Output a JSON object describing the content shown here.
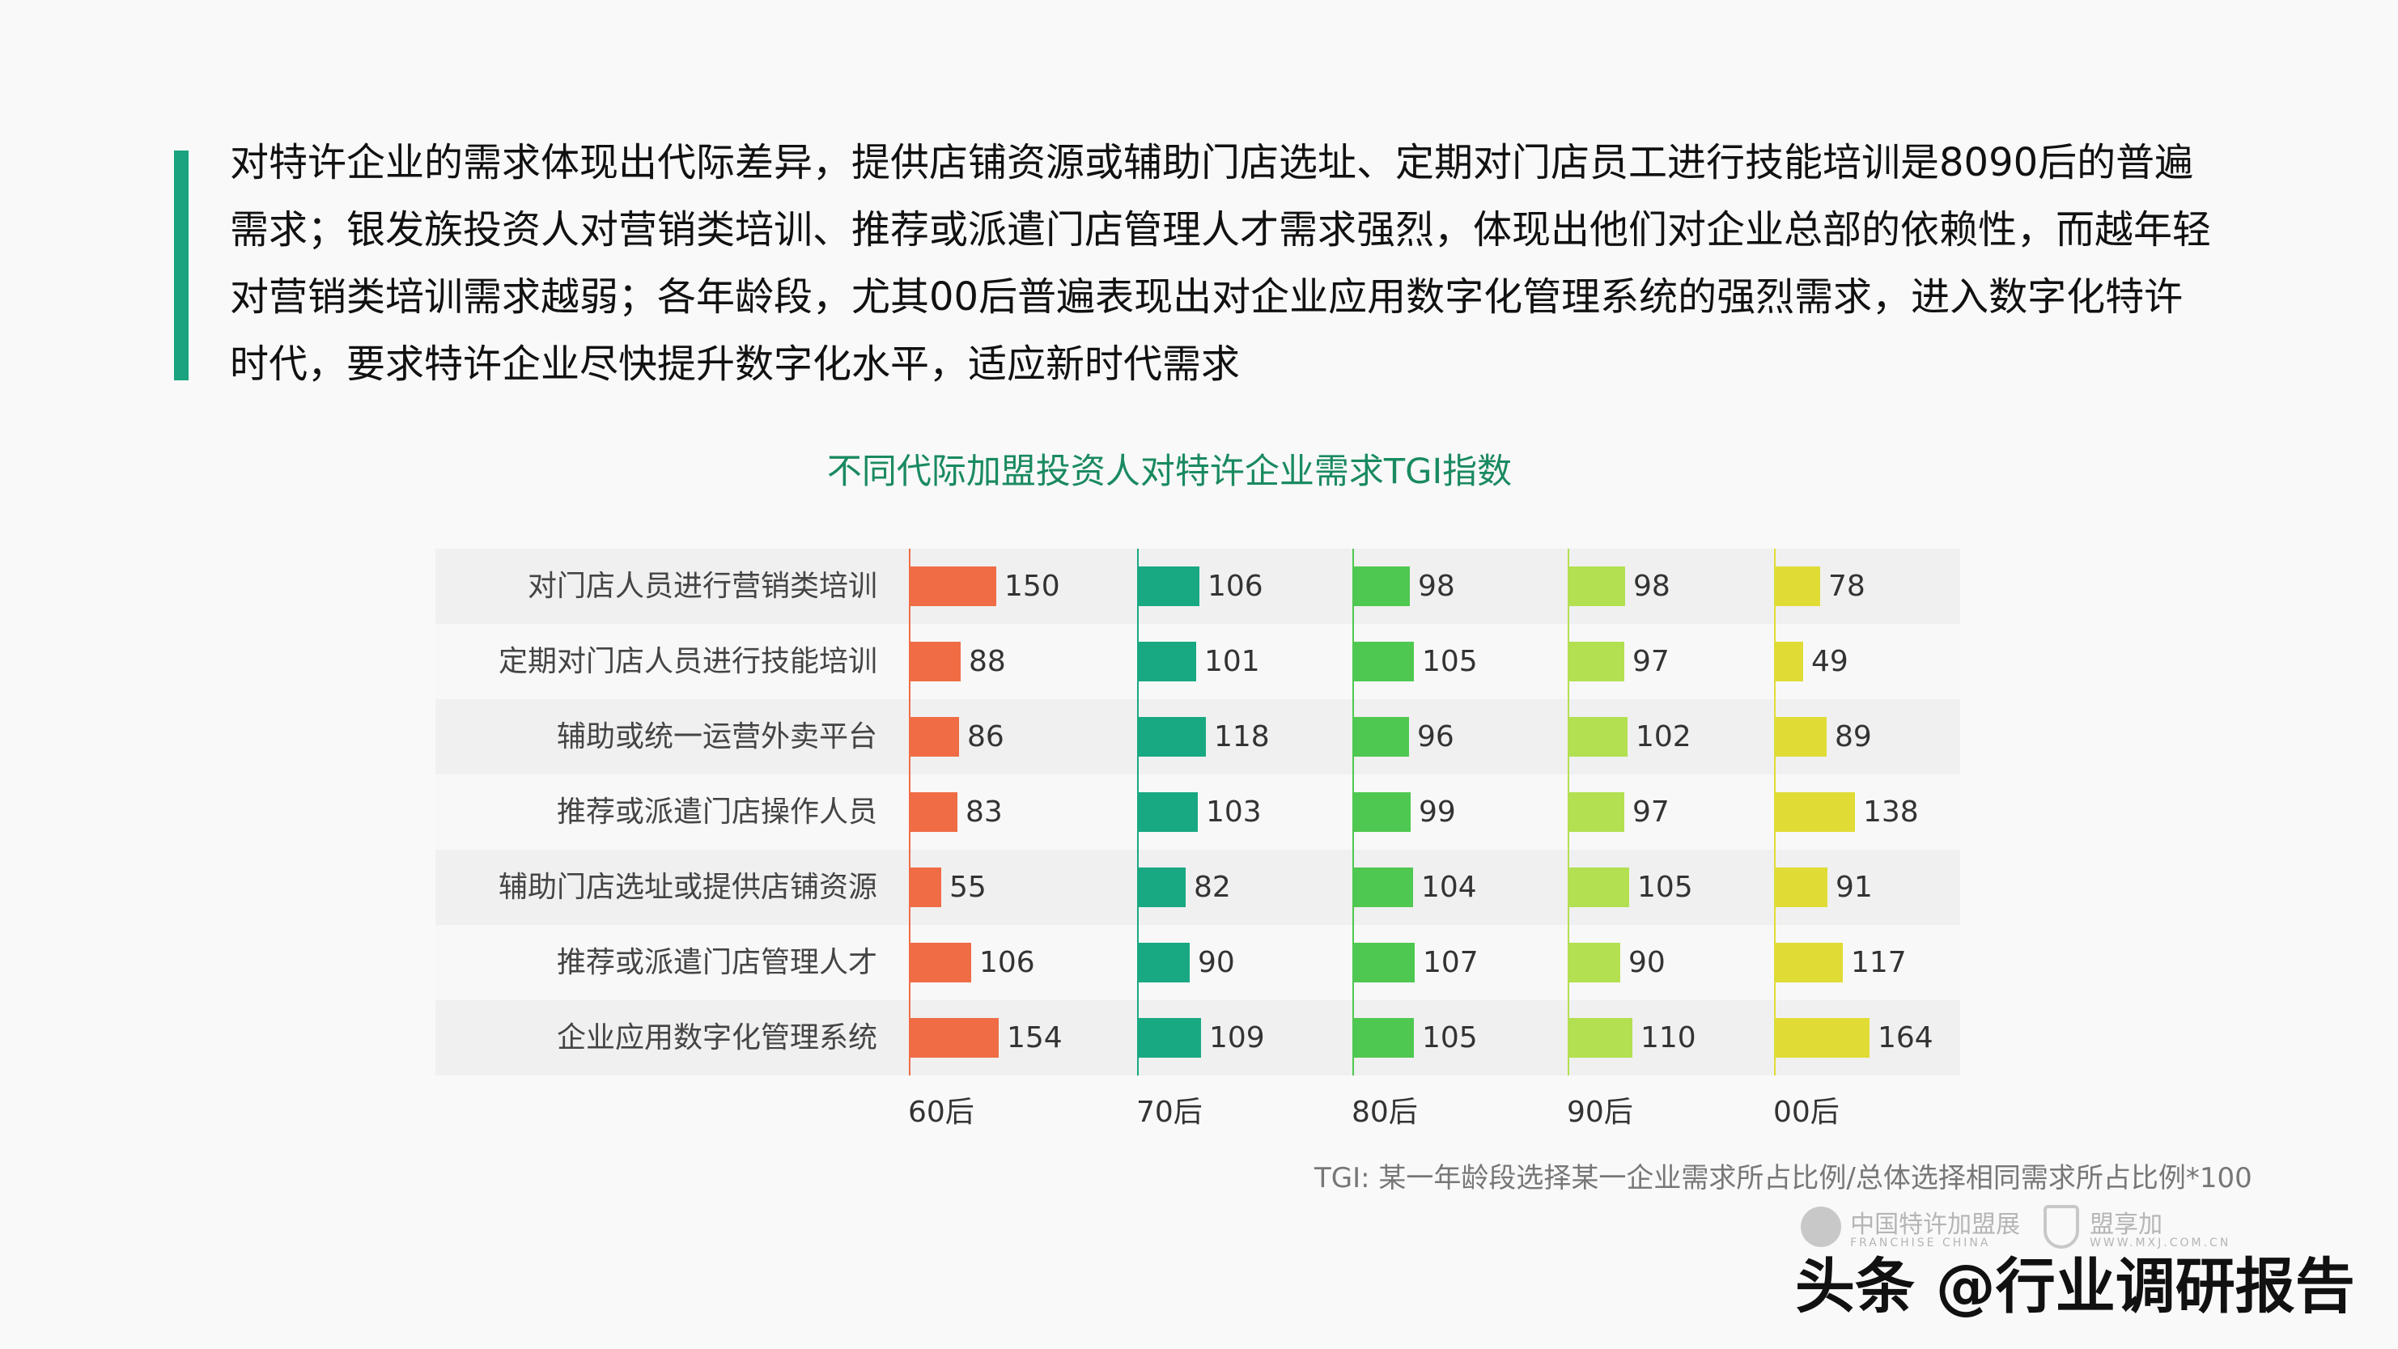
{
  "summary": {
    "text": "对特许企业的需求体现出代际差异，提供店铺资源或辅助门店选址、定期对门店员工进行技能培训是8090后的普遍需求；银发族投资人对营销类培训、推荐或派遣门店管理人才需求强烈，体现出他们对企业总部的依赖性，而越年轻对营销类培训需求越弱；各年龄段，尤其00后普遍表现出对企业应用数字化管理系统的强烈需求，进入数字化特许时代，要求特许企业尽快提升数字化水平，适应新时代需求",
    "lines": [
      "对特许企业的需求体现出代际差异，提供店铺资源或辅助门店选址、定期对门店员工进行技能培训是8090后的普遍",
      "需求；银发族投资人对营销类培训、推荐或派遣门店管理人才需求强烈，体现出他们对企业总部的依赖性，而越年轻",
      "对营销类培训需求越弱；各年龄段，尤其00后普遍表现出对企业应用数字化管理系统的强烈需求，进入数字化特许",
      "时代，要求特许企业尽快提升数字化水平，适应新时代需求"
    ],
    "accent_color": "#1aa37e"
  },
  "chart_data": {
    "type": "bar",
    "orientation": "horizontal-small-multiples",
    "title": "不同代际加盟投资人对特许企业需求TGI指数",
    "xlabel": "",
    "ylabel": "",
    "categories": [
      "对门店人员进行营销类培训",
      "定期对门店人员进行技能培训",
      "辅助或统一运营外卖平台",
      "推荐或派遣门店操作人员",
      "辅助门店选址或提供店铺资源",
      "推荐或派遣门店管理人才",
      "企业应用数字化管理系统"
    ],
    "series": [
      {
        "name": "60后",
        "color": "#ef6c45",
        "values": [
          150,
          88,
          86,
          83,
          55,
          106,
          154
        ]
      },
      {
        "name": "70后",
        "color": "#18a882",
        "values": [
          106,
          101,
          118,
          103,
          82,
          90,
          109
        ]
      },
      {
        "name": "80后",
        "color": "#4ec850",
        "values": [
          98,
          105,
          96,
          99,
          104,
          107,
          105
        ]
      },
      {
        "name": "90后",
        "color": "#b2e050",
        "values": [
          98,
          97,
          102,
          97,
          105,
          90,
          110
        ]
      },
      {
        "name": "00后",
        "color": "#e0dc35",
        "values": [
          78,
          49,
          89,
          138,
          91,
          117,
          164
        ]
      }
    ],
    "grid": false,
    "legend_position": "bottom (column labels)",
    "footnote": "TGI: 某一年龄段选择某一企业需求所占比例/总体选择相同需求所占比例*100"
  },
  "logos": {
    "franchise_china_cn": "中国特许加盟展",
    "franchise_china_en": "FRANCHISE CHINA",
    "mxj_cn": "盟享加",
    "mxj_en": "WWW.MXJ.COM.CN"
  },
  "watermark": "头条 @行业调研报告"
}
